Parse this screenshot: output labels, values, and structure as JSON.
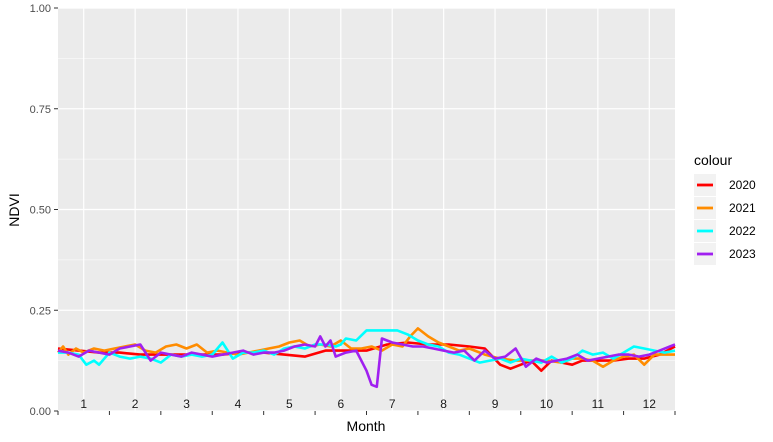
{
  "chart_data": {
    "type": "line",
    "ylabel": "NDVI",
    "xlabel": "Month",
    "ylim": [
      0,
      1
    ],
    "xlim": [
      0,
      12
    ],
    "y_ticks": [
      "0.00",
      "0.25",
      "0.50",
      "0.75",
      "1.00"
    ],
    "y_tick_values": [
      0,
      0.25,
      0.5,
      0.75,
      1
    ],
    "x_month_labels": [
      "1",
      "2",
      "3",
      "4",
      "5",
      "6",
      "7",
      "8",
      "9",
      "10",
      "11",
      "12"
    ],
    "grid": true,
    "legend": {
      "title": "colour",
      "placement": "right"
    },
    "colors": {
      "panel": "#ebebeb",
      "grid": "#ffffff"
    },
    "series": [
      {
        "name": "2020",
        "color": "#ff0000",
        "x": [
          0.0,
          0.4,
          0.8,
          1.2,
          1.6,
          2.0,
          2.4,
          2.8,
          3.2,
          3.6,
          4.0,
          4.4,
          4.8,
          5.2,
          5.6,
          6.0,
          6.4,
          6.8,
          7.2,
          7.6,
          8.0,
          8.3,
          8.6,
          8.8,
          9.0,
          9.2,
          9.4,
          9.6,
          9.8,
          10.0,
          10.2,
          10.5,
          10.8,
          11.1,
          11.4,
          11.7,
          12.0
        ],
        "y": [
          0.155,
          0.15,
          0.145,
          0.145,
          0.14,
          0.14,
          0.14,
          0.14,
          0.14,
          0.145,
          0.145,
          0.14,
          0.135,
          0.15,
          0.15,
          0.15,
          0.165,
          0.17,
          0.165,
          0.165,
          0.16,
          0.155,
          0.115,
          0.105,
          0.115,
          0.125,
          0.1,
          0.125,
          0.12,
          0.115,
          0.125,
          0.125,
          0.125,
          0.13,
          0.13,
          0.14,
          0.16
        ]
      },
      {
        "name": "2021",
        "color": "#ff8c00",
        "x": [
          0.0,
          0.1,
          0.2,
          0.35,
          0.5,
          0.7,
          0.9,
          1.1,
          1.3,
          1.5,
          1.7,
          1.9,
          2.1,
          2.3,
          2.5,
          2.7,
          2.9,
          3.1,
          3.3,
          3.5,
          3.7,
          3.9,
          4.1,
          4.3,
          4.5,
          4.7,
          4.9,
          5.1,
          5.3,
          5.5,
          5.7,
          5.9,
          6.1,
          6.3,
          6.5,
          6.7,
          6.85,
          7.0,
          7.2,
          7.4,
          7.6,
          7.8,
          8.0,
          8.3,
          8.6,
          8.9,
          9.2,
          9.5,
          9.8,
          10.0,
          10.2,
          10.4,
          10.6,
          10.8,
          11.0,
          11.2,
          11.4,
          11.6,
          11.8,
          12.0
        ],
        "y": [
          0.145,
          0.16,
          0.14,
          0.155,
          0.145,
          0.155,
          0.15,
          0.155,
          0.16,
          0.165,
          0.15,
          0.145,
          0.16,
          0.165,
          0.155,
          0.165,
          0.145,
          0.15,
          0.145,
          0.14,
          0.145,
          0.15,
          0.155,
          0.16,
          0.17,
          0.175,
          0.16,
          0.165,
          0.16,
          0.175,
          0.155,
          0.155,
          0.16,
          0.15,
          0.165,
          0.16,
          0.185,
          0.205,
          0.185,
          0.17,
          0.16,
          0.15,
          0.155,
          0.14,
          0.13,
          0.125,
          0.125,
          0.125,
          0.12,
          0.13,
          0.13,
          0.125,
          0.11,
          0.125,
          0.135,
          0.14,
          0.115,
          0.14,
          0.14,
          0.14
        ]
      },
      {
        "name": "2022",
        "color": "#00ffff",
        "x": [
          0.0,
          0.2,
          0.4,
          0.55,
          0.7,
          0.8,
          1.0,
          1.2,
          1.4,
          1.6,
          1.8,
          2.0,
          2.2,
          2.4,
          2.6,
          2.8,
          3.0,
          3.2,
          3.4,
          3.6,
          3.8,
          4.0,
          4.2,
          4.4,
          4.6,
          4.8,
          5.0,
          5.2,
          5.4,
          5.5,
          5.6,
          5.8,
          6.0,
          6.2,
          6.4,
          6.6,
          6.8,
          7.0,
          7.2,
          7.4,
          7.6,
          7.8,
          8.0,
          8.2,
          8.4,
          8.6,
          8.8,
          9.0,
          9.2,
          9.4,
          9.6,
          9.8,
          10.0,
          10.2,
          10.4,
          10.6,
          10.8,
          11.0,
          11.2,
          11.4,
          11.6,
          11.8,
          12.0
        ],
        "y": [
          0.145,
          0.145,
          0.14,
          0.115,
          0.125,
          0.115,
          0.145,
          0.135,
          0.13,
          0.135,
          0.13,
          0.12,
          0.14,
          0.135,
          0.14,
          0.135,
          0.14,
          0.17,
          0.13,
          0.145,
          0.145,
          0.15,
          0.14,
          0.155,
          0.16,
          0.155,
          0.165,
          0.165,
          0.16,
          0.165,
          0.18,
          0.175,
          0.2,
          0.2,
          0.2,
          0.2,
          0.19,
          0.175,
          0.165,
          0.16,
          0.145,
          0.14,
          0.13,
          0.12,
          0.125,
          0.13,
          0.12,
          0.13,
          0.125,
          0.12,
          0.135,
          0.12,
          0.13,
          0.15,
          0.14,
          0.145,
          0.13,
          0.145,
          0.16,
          0.155,
          0.15,
          0.145,
          0.15
        ]
      },
      {
        "name": "2023",
        "color": "#a020f0",
        "x": [
          0.0,
          0.2,
          0.4,
          0.6,
          0.8,
          1.0,
          1.2,
          1.4,
          1.6,
          1.8,
          2.0,
          2.2,
          2.4,
          2.6,
          2.8,
          3.0,
          3.2,
          3.4,
          3.6,
          3.8,
          4.0,
          4.2,
          4.4,
          4.6,
          4.8,
          5.0,
          5.1,
          5.2,
          5.3,
          5.4,
          5.5,
          5.6,
          5.8,
          6.0,
          6.1,
          6.2,
          6.3,
          6.5,
          6.7,
          6.9,
          7.1,
          7.3,
          7.5,
          7.7,
          7.9,
          8.1,
          8.3,
          8.5,
          8.7,
          8.9,
          9.1,
          9.3,
          9.5,
          9.7,
          9.9,
          10.1,
          10.3,
          10.5,
          10.7,
          10.9,
          11.1,
          11.3,
          11.5,
          11.7,
          11.9,
          12.0
        ],
        "y": [
          0.15,
          0.145,
          0.135,
          0.15,
          0.145,
          0.14,
          0.155,
          0.16,
          0.165,
          0.125,
          0.145,
          0.14,
          0.135,
          0.145,
          0.14,
          0.135,
          0.14,
          0.145,
          0.15,
          0.14,
          0.145,
          0.145,
          0.15,
          0.16,
          0.165,
          0.16,
          0.185,
          0.16,
          0.175,
          0.135,
          0.14,
          0.145,
          0.15,
          0.1,
          0.065,
          0.06,
          0.18,
          0.17,
          0.165,
          0.16,
          0.16,
          0.155,
          0.15,
          0.145,
          0.15,
          0.125,
          0.15,
          0.13,
          0.135,
          0.155,
          0.11,
          0.13,
          0.12,
          0.125,
          0.13,
          0.14,
          0.125,
          0.13,
          0.135,
          0.14,
          0.14,
          0.135,
          0.14,
          0.15,
          0.16,
          0.165
        ]
      }
    ]
  }
}
